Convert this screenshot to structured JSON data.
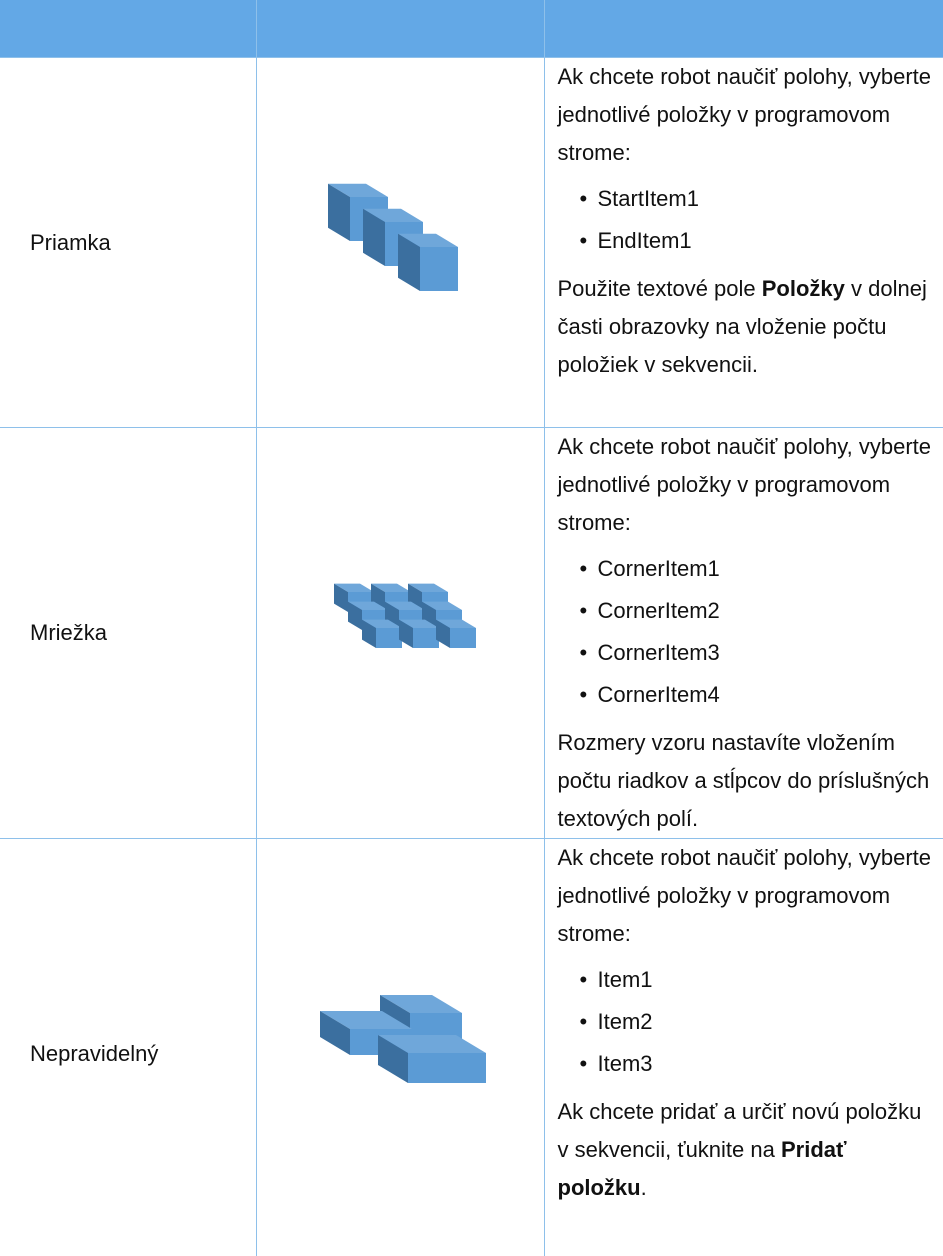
{
  "table": {
    "rows": [
      {
        "label": "Priamka",
        "intro": "Ak chcete robot naučiť polohy, vyberte jednotlivé položky v programovom strome:",
        "items": [
          "StartItem1",
          "EndItem1"
        ],
        "note": [
          {
            "text": "Použite textové pole "
          },
          {
            "text": "Položky",
            "bold": true
          },
          {
            "text": " v dolnej časti obrazovky na vloženie počtu položiek v sekvencii."
          }
        ]
      },
      {
        "label": "Mriežka",
        "intro": "Ak chcete robot naučiť polohy, vyberte jednotlivé položky v programovom strome:",
        "items": [
          "CornerItem1",
          "CornerItem2",
          "CornerItem3",
          "CornerItem4"
        ],
        "note": [
          {
            "text": "Rozmery vzoru nastavíte vložením počtu riadkov a stĺpcov do príslušných textových polí."
          }
        ]
      },
      {
        "label": "Nepravidelný",
        "intro": "Ak chcete robot naučiť polohy, vyberte jednotlivé položky v programovom strome:",
        "items": [
          "Item1",
          "Item2",
          "Item3"
        ],
        "note": [
          {
            "text": "Ak chcete pridať a určiť novú položku v sekvencii, ťuknite na "
          },
          {
            "text": "Pridať položku",
            "bold": true
          },
          {
            "text": "."
          }
        ]
      }
    ]
  }
}
